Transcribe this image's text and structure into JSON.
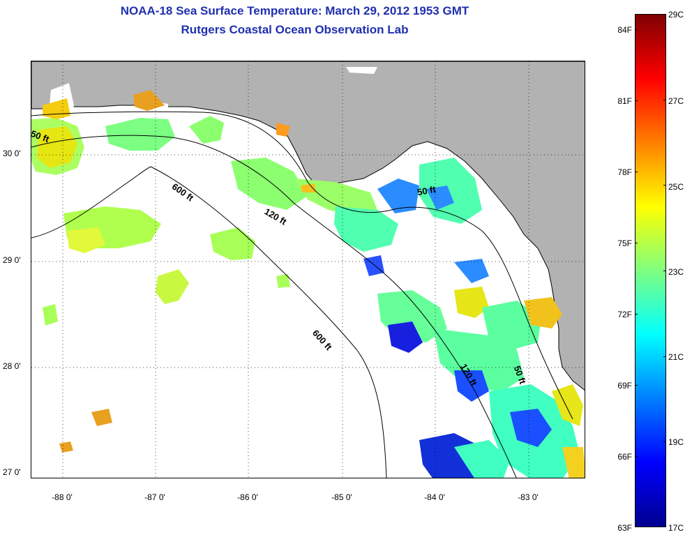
{
  "title": {
    "line1": "NOAA-18 Sea Surface Temperature:  March 29, 2012 1953 GMT",
    "line2": "Rutgers Coastal Ocean Observation Lab"
  },
  "map": {
    "latitude_labels": [
      "30 0'",
      "29 0'",
      "28 0'",
      "27 0'"
    ],
    "longitude_labels": [
      "-88 0'",
      "-87 0'",
      "-86 0'",
      "-85 0'",
      "-84 0'",
      "-83 0'"
    ],
    "contour_labels": [
      "50 ft",
      "600 ft",
      "120 ft",
      "50 ft",
      "600 ft",
      "120 ft",
      "50 ft"
    ],
    "land_color": "#b2b2b2",
    "no_data_color": "#ffffff"
  },
  "colorbar": {
    "fahrenheit_labels": [
      "84F",
      "81F",
      "78F",
      "75F",
      "72F",
      "69F",
      "66F",
      "63F"
    ],
    "celsius_labels": [
      "29C",
      "27C",
      "25C",
      "23C",
      "21C",
      "19C",
      "17C"
    ],
    "colormap": "jet",
    "range_c": [
      17,
      29
    ]
  }
}
